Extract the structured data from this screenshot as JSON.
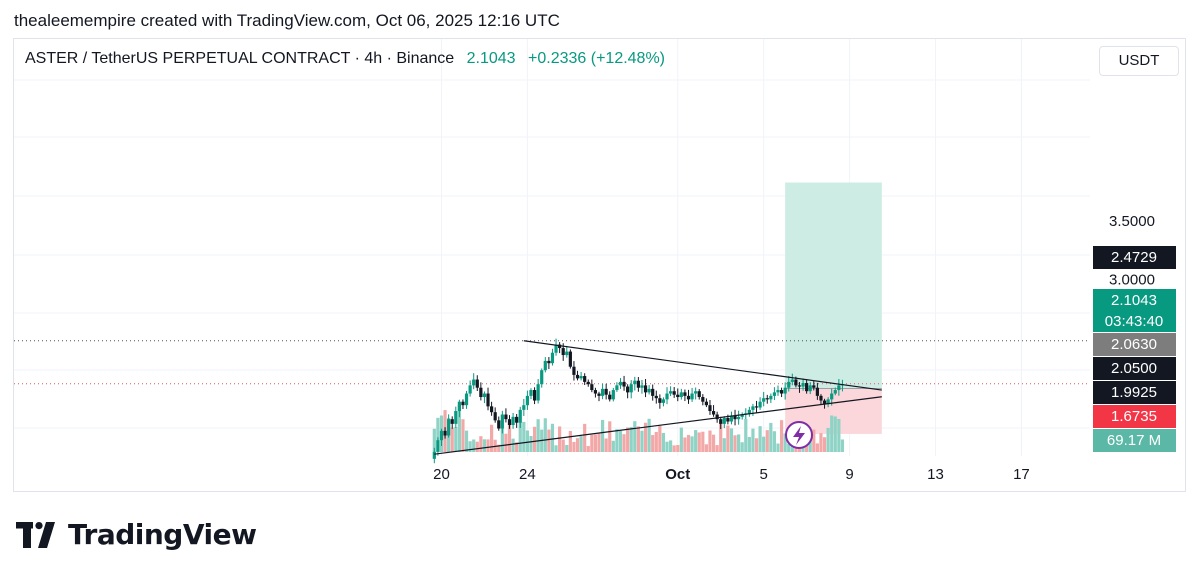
{
  "credit": "thealeemempire created with TradingView.com, Oct 06, 2025 12:16 UTC",
  "header": {
    "symbol": "ASTER / TetherUS PERPETUAL CONTRACT · 4h · Binance",
    "price": "2.1043",
    "change": "+0.2336 (+12.48%)"
  },
  "currency_button": "USDT",
  "brand": "TradingView",
  "colors": {
    "up": "#089981",
    "down": "#131722",
    "volume_up": "#8fd3c6",
    "volume_down": "#f3a8a8",
    "target_zone": "#cdece4",
    "stop_zone": "#fbd7db",
    "lightning": "#7e2da6"
  },
  "chart_data": {
    "type": "candlestick",
    "timeframe": "4h",
    "ylim": [
      1.45,
      3.75
    ],
    "price_ticks": [
      "3.5000",
      "3.0000"
    ],
    "x_ticks": [
      "20",
      "24",
      "Oct",
      "5",
      "9",
      "13",
      "17"
    ],
    "x_start": "2025-09-19",
    "last_price": 2.1043,
    "countdown": "03:43:40",
    "price_labels": [
      {
        "value": "2.4729",
        "style": "black"
      },
      {
        "value": "2.1043",
        "style": "green"
      },
      {
        "value": "03:43:40",
        "style": "green"
      },
      {
        "value": "2.0630",
        "style": "gray"
      },
      {
        "value": "2.0500",
        "style": "black"
      },
      {
        "value": "1.9925",
        "style": "black"
      },
      {
        "value": "1.6735",
        "style": "red"
      },
      {
        "value": "69.17 M",
        "style": "teal"
      }
    ],
    "horizontal_lines": [
      2.4729,
      2.1043
    ],
    "triangle": {
      "upper": {
        "from": [
          "2025-09-23 20:00",
          2.4729
        ],
        "to": [
          "2025-10-10 12:00",
          2.05
        ]
      },
      "lower": {
        "from": [
          "2025-09-19 16:00",
          1.5
        ],
        "to": [
          "2025-10-10 12:00",
          1.9925
        ]
      }
    },
    "position": {
      "start": "2025-10-06 00:00",
      "end": "2025-10-10 12:00",
      "entry": 2.063,
      "target": 3.83,
      "stop": 1.6735
    },
    "close_series": [
      1.52,
      1.62,
      1.7,
      1.66,
      1.8,
      1.76,
      1.87,
      1.95,
      1.92,
      2.02,
      2.09,
      2.14,
      2.07,
      1.99,
      2.02,
      1.91,
      1.86,
      1.79,
      1.72,
      1.84,
      1.8,
      1.75,
      1.82,
      1.77,
      1.88,
      1.92,
      2.0,
      2.05,
      1.96,
      2.1,
      2.22,
      2.3,
      2.28,
      2.37,
      2.44,
      2.41,
      2.35,
      2.38,
      2.25,
      2.18,
      2.15,
      2.17,
      2.12,
      2.1,
      2.05,
      2.02,
      2.0,
      2.06,
      2.01,
      1.97,
      2.05,
      2.09,
      2.12,
      2.08,
      2.03,
      2.1,
      2.13,
      2.07,
      2.09,
      2.03,
      2.06,
      2.0,
      1.98,
      1.94,
      1.97,
      2.02,
      2.04,
      2.01,
      1.99,
      2.03,
      2.0,
      1.97,
      2.02,
      2.04,
      1.99,
      1.95,
      1.92,
      1.87,
      1.84,
      1.8,
      1.76,
      1.81,
      1.78,
      1.83,
      1.8,
      1.82,
      1.84,
      1.85,
      1.88,
      1.91,
      1.9,
      1.95,
      1.98,
      1.97,
      2.0,
      2.03,
      2.05,
      2.02,
      2.07,
      2.12,
      2.14,
      2.09,
      2.08,
      2.11,
      2.04,
      2.09,
      2.07,
      2.0,
      1.96,
      1.93,
      1.97,
      2.02,
      2.05,
      2.09,
      2.1
    ]
  }
}
